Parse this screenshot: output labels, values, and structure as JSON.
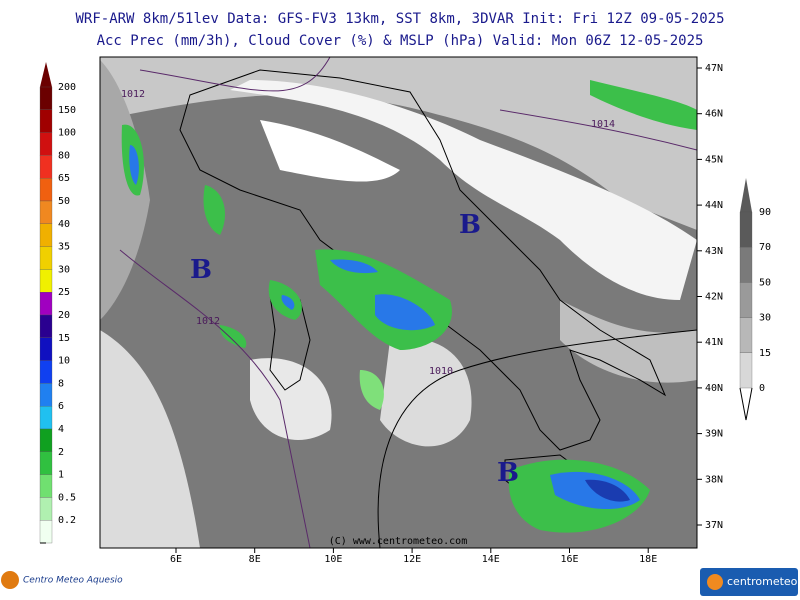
{
  "header": {
    "line1": "WRF-ARW 8km/51lev  Data: GFS-FV3 13km, SST 8km, 3DVAR  Init: Fri 12Z 09-05-2025",
    "line2": "Acc Prec (mm/3h), Cloud Cover (%) & MSLP (hPa)  Valid: Mon 06Z 12-05-2025"
  },
  "precip_scale": {
    "labels": [
      "200",
      "150",
      "100",
      "80",
      "65",
      "50",
      "40",
      "35",
      "30",
      "25",
      "20",
      "15",
      "10",
      "8",
      "6",
      "4",
      "2",
      "1",
      "0.5",
      "0.2"
    ]
  },
  "cloud_scale": {
    "labels": [
      "90",
      "70",
      "50",
      "30",
      "15",
      "0"
    ]
  },
  "latitude_labels": [
    "47N",
    "46N",
    "45N",
    "44N",
    "43N",
    "42N",
    "41N",
    "40N",
    "39N",
    "38N",
    "37N"
  ],
  "longitude_labels": [
    "6E",
    "8E",
    "10E",
    "12E",
    "14E",
    "16E",
    "18E"
  ],
  "isobar_labels": [
    "1012",
    "1014",
    "1012",
    "1010"
  ],
  "low_pressure_labels": [
    "B",
    "B",
    "B"
  ],
  "copyright": "(C) www.centrometeo.com",
  "logos": {
    "left": "Centro Meteo Aquesio",
    "right": "centrometeo"
  }
}
